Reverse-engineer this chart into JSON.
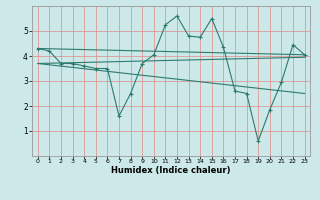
{
  "xlabel": "Humidex (Indice chaleur)",
  "bg_color": "#cce8e8",
  "line_color": "#2d7b6e",
  "grid_color": "#e08888",
  "xlim": [
    -0.5,
    23.5
  ],
  "ylim": [
    0,
    6
  ],
  "xticks": [
    0,
    1,
    2,
    3,
    4,
    5,
    6,
    7,
    8,
    9,
    10,
    11,
    12,
    13,
    14,
    15,
    16,
    17,
    18,
    19,
    20,
    21,
    22,
    23
  ],
  "yticks": [
    1,
    2,
    3,
    4,
    5
  ],
  "series_main": {
    "x": [
      0,
      1,
      2,
      3,
      4,
      5,
      6,
      7,
      8,
      9,
      10,
      11,
      12,
      13,
      14,
      15,
      16,
      17,
      18,
      19,
      20,
      21,
      22,
      23
    ],
    "y": [
      4.3,
      4.2,
      3.7,
      3.7,
      3.6,
      3.5,
      3.5,
      1.6,
      2.5,
      3.7,
      4.05,
      5.25,
      5.6,
      4.8,
      4.75,
      5.5,
      4.35,
      2.6,
      2.5,
      0.6,
      1.85,
      2.95,
      4.45,
      4.05
    ]
  },
  "series_lines": [
    {
      "x": [
        0,
        23
      ],
      "y": [
        4.3,
        4.05
      ]
    },
    {
      "x": [
        0,
        23
      ],
      "y": [
        3.7,
        2.5
      ]
    },
    {
      "x": [
        0,
        23
      ],
      "y": [
        3.7,
        3.95
      ]
    }
  ]
}
